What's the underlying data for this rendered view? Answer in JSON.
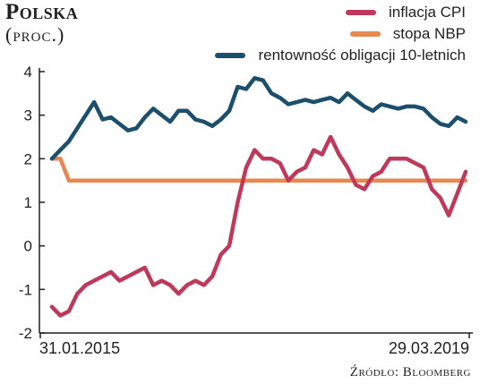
{
  "title": "Polska",
  "subtitle": "(proc.)",
  "source": "Źródło: Bloomberg",
  "chart_data": {
    "type": "line",
    "title": "Polska",
    "subtitle": "(proc.)",
    "ylim": [
      -2,
      4
    ],
    "yticks": [
      "4",
      "3",
      "2",
      "1",
      "0",
      "-1",
      "-2"
    ],
    "xlim_labels": [
      "31.01.2015",
      "29.03.2019"
    ],
    "grid": false,
    "legend_position": "top-right",
    "series": [
      {
        "name": "inflacja CPI",
        "color": "#c0395a",
        "values": [
          -1.4,
          -1.6,
          -1.5,
          -1.1,
          -0.9,
          -0.8,
          -0.7,
          -0.6,
          -0.8,
          -0.7,
          -0.6,
          -0.5,
          -0.9,
          -0.8,
          -0.9,
          -1.1,
          -0.9,
          -0.8,
          -0.9,
          -0.7,
          -0.2,
          0.0,
          1.0,
          1.8,
          2.2,
          2.0,
          2.0,
          1.9,
          1.5,
          1.7,
          1.8,
          2.2,
          2.1,
          2.5,
          2.1,
          1.8,
          1.4,
          1.3,
          1.6,
          1.7,
          2.0,
          2.0,
          2.0,
          1.9,
          1.8,
          1.3,
          1.1,
          0.7,
          1.2,
          1.7
        ]
      },
      {
        "name": "stopa NBP",
        "color": "#e8874e",
        "values": [
          2.0,
          2.0,
          1.5,
          1.5,
          1.5,
          1.5,
          1.5,
          1.5,
          1.5,
          1.5,
          1.5,
          1.5,
          1.5,
          1.5,
          1.5,
          1.5,
          1.5,
          1.5,
          1.5,
          1.5,
          1.5,
          1.5,
          1.5,
          1.5,
          1.5,
          1.5,
          1.5,
          1.5,
          1.5,
          1.5,
          1.5,
          1.5,
          1.5,
          1.5,
          1.5,
          1.5,
          1.5,
          1.5,
          1.5,
          1.5,
          1.5,
          1.5,
          1.5,
          1.5,
          1.5,
          1.5,
          1.5,
          1.5,
          1.5,
          1.5
        ]
      },
      {
        "name": "rentowność obligacji 10-letnich",
        "color": "#1b4f6b",
        "values": [
          2.0,
          2.2,
          2.4,
          2.7,
          3.0,
          3.3,
          2.9,
          2.95,
          2.8,
          2.65,
          2.7,
          2.95,
          3.15,
          3.0,
          2.85,
          3.1,
          3.1,
          2.9,
          2.85,
          2.75,
          2.9,
          3.1,
          3.65,
          3.6,
          3.85,
          3.8,
          3.5,
          3.4,
          3.25,
          3.3,
          3.35,
          3.3,
          3.35,
          3.4,
          3.3,
          3.5,
          3.35,
          3.2,
          3.1,
          3.25,
          3.2,
          3.15,
          3.2,
          3.2,
          3.15,
          2.95,
          2.8,
          2.75,
          2.95,
          2.85
        ]
      }
    ]
  }
}
